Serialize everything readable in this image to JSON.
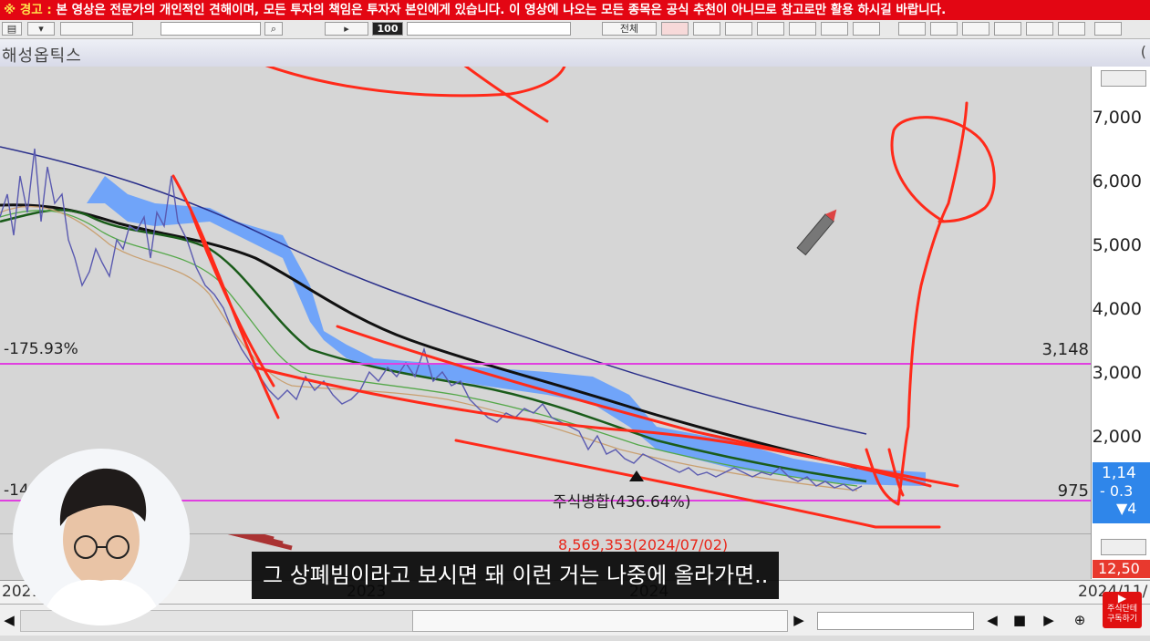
{
  "warning": {
    "prefix": "※ 경고 :",
    "text": " 본 영상은 전문가의 개인적인 견해이며, 모든 투자의 책임은 투자자 본인에게 있습니다. 이 영상에 나오는 모든 종목은 공식 추천이 아니므로 참고로만 활용 하시길 바랍니다."
  },
  "toolbar": {
    "period_label": "100",
    "tab_all": "전체"
  },
  "stock": {
    "name": "해성옵틱스",
    "paren": "("
  },
  "chart": {
    "y_ticks": [
      "7,000",
      "6,000",
      "5,000",
      "4,000",
      "3,000",
      "2,000"
    ],
    "upper_level": {
      "value": "3,148",
      "pct": "-175.93%"
    },
    "lower_level": {
      "value": "975",
      "pct": "-14"
    },
    "annotation": "주식병합(436.64%)",
    "volume_annotation": "8,569,353(2024/07/02)",
    "date_labels": [
      "2021/",
      "2023",
      "2024",
      "2024/11/"
    ]
  },
  "price_box": {
    "price": "1,14",
    "change": "- 0.3",
    "arrow": "▼4"
  },
  "volume_value": "12,50",
  "subtitle": "그 상폐빔이라고 보시면 돼 이런 거는 나중에 올라가면..",
  "subscribe_badge": "주식단테 구독하기",
  "colors": {
    "warning_bg": "#e30613",
    "level_line": "#e040e0",
    "annotation_red": "#ff2a1a",
    "cloud": "#5e9bff"
  }
}
